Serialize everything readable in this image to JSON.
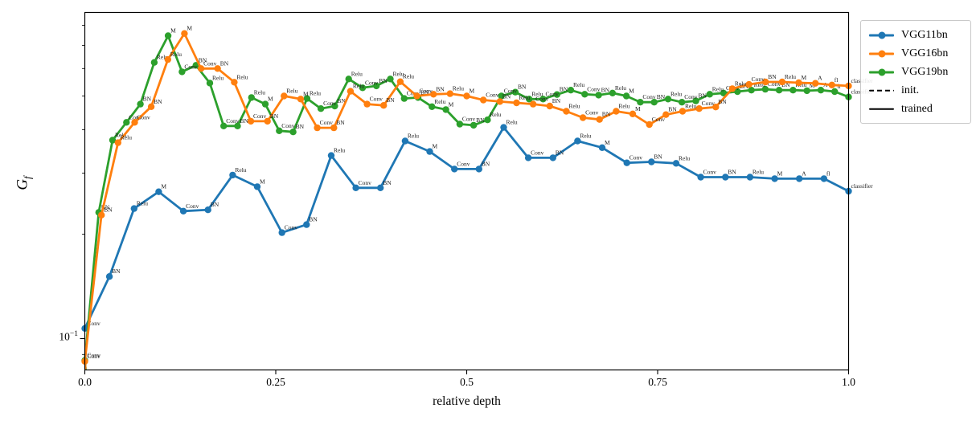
{
  "figure": {
    "background": "#ffffff"
  },
  "axes": {
    "xlabel": "relative depth",
    "ylabel_main": "G",
    "ylabel_sub": "f",
    "x_ticks": [
      {
        "value": 0.0,
        "label": "0.0"
      },
      {
        "value": 0.25,
        "label": "0.25"
      },
      {
        "value": 0.5,
        "label": "0.5"
      },
      {
        "value": 0.75,
        "label": "0.75"
      },
      {
        "value": 1.0,
        "label": "1.0"
      }
    ],
    "y_major_tick": {
      "value": 0.1,
      "base": "10",
      "exp": "−1"
    },
    "y_minor_ticks": [
      0.09,
      0.2,
      0.3,
      0.4,
      0.5,
      0.6,
      0.7,
      0.8
    ],
    "xlim": [
      0,
      1
    ],
    "grid": false
  },
  "legend": {
    "position": "outside-upper-right",
    "entries": [
      {
        "label": "VGG11bn",
        "color": "#1f77b4",
        "style": "solid-marker"
      },
      {
        "label": "VGG16bn",
        "color": "#ff7f0e",
        "style": "solid-marker"
      },
      {
        "label": "VGG19bn",
        "color": "#2ca02c",
        "style": "solid-marker"
      },
      {
        "label": "init.",
        "color": "#000000",
        "style": "dashed"
      },
      {
        "label": "trained",
        "color": "#000000",
        "style": "solid"
      }
    ]
  },
  "chart_data": {
    "type": "line",
    "title": "",
    "xlabel": "relative depth",
    "ylabel": "G_f",
    "y_scale": "log",
    "ylim": [
      0.081,
      0.88
    ],
    "x_rule": "points evenly spaced, x = index/(n-1) over relative depth 0..1",
    "series": [
      {
        "name": "VGG11bn",
        "color": "#1f77b4",
        "condition": "trained",
        "point_labels": [
          "Conv",
          "BN",
          "Relu",
          "M",
          "Conv",
          "BN",
          "Relu",
          "M",
          "Conv",
          "BN",
          "Relu",
          "Conv",
          "BN",
          "Relu",
          "M",
          "Conv",
          "BN",
          "Relu",
          "Conv",
          "BN",
          "Relu",
          "M",
          "Conv",
          "BN",
          "Relu",
          "Conv",
          "BN",
          "Relu",
          "M",
          "A",
          "fl",
          "classifier"
        ],
        "values": [
          0.107,
          0.151,
          0.237,
          0.265,
          0.233,
          0.235,
          0.296,
          0.274,
          0.202,
          0.213,
          0.337,
          0.272,
          0.272,
          0.371,
          0.346,
          0.308,
          0.308,
          0.406,
          0.332,
          0.332,
          0.371,
          0.355,
          0.321,
          0.323,
          0.32,
          0.292,
          0.292,
          0.292,
          0.289,
          0.289,
          0.289,
          0.266
        ]
      },
      {
        "name": "VGG19bn",
        "color": "#2ca02c",
        "condition": "trained",
        "point_labels": [
          "Conv",
          "BN",
          "Relu",
          "Conv",
          "BN",
          "Relu",
          "M",
          "Conv",
          "BN",
          "Relu",
          "Conv",
          "BN",
          "Relu",
          "M",
          "Conv",
          "BN",
          "Relu",
          "Conv",
          "BN",
          "Relu",
          "Conv",
          "BN",
          "Relu",
          "Conv",
          "BN",
          "Relu",
          "M",
          "Conv",
          "BN",
          "Relu",
          "Conv",
          "BN",
          "Relu",
          "Conv",
          "BN",
          "Relu",
          "Conv",
          "BN",
          "Relu",
          "M",
          "Conv",
          "BN",
          "Relu",
          "Conv",
          "BN",
          "Relu",
          "Conv",
          "BN",
          "Relu",
          "Conv",
          "BN",
          "Relu",
          "M",
          "A",
          "fl",
          "classifier"
        ],
        "values": [
          0.0865,
          0.231,
          0.373,
          0.42,
          0.474,
          0.625,
          0.746,
          0.587,
          0.613,
          0.545,
          0.41,
          0.41,
          0.495,
          0.474,
          0.397,
          0.394,
          0.492,
          0.46,
          0.468,
          0.56,
          0.528,
          0.535,
          0.56,
          0.492,
          0.495,
          0.466,
          0.457,
          0.415,
          0.412,
          0.427,
          0.5,
          0.513,
          0.49,
          0.49,
          0.505,
          0.52,
          0.506,
          0.503,
          0.51,
          0.5,
          0.48,
          0.48,
          0.49,
          0.48,
          0.484,
          0.506,
          0.51,
          0.515,
          0.52,
          0.523,
          0.52,
          0.52,
          0.518,
          0.52,
          0.515,
          0.497
        ]
      },
      {
        "name": "VGG16bn",
        "color": "#ff7f0e",
        "condition": "trained",
        "point_labels": [
          "Conv",
          "BN",
          "Relu",
          "Conv",
          "BN",
          "Relu",
          "M",
          "Conv",
          "BN",
          "Relu",
          "Conv",
          "BN",
          "Relu",
          "M",
          "Conv",
          "BN",
          "Relu",
          "Conv",
          "BN",
          "Relu",
          "Conv",
          "BN",
          "Relu",
          "M",
          "Conv",
          "BN",
          "Relu",
          "Conv",
          "BN",
          "Relu",
          "Conv",
          "BN",
          "Relu",
          "M",
          "Conv",
          "BN",
          "Relu",
          "Conv",
          "BN",
          "Relu",
          "Conv",
          "BN",
          "Relu",
          "M",
          "A",
          "fl",
          "classifier"
        ],
        "values": [
          0.086,
          0.227,
          0.367,
          0.42,
          0.466,
          0.637,
          0.757,
          0.6,
          0.6,
          0.548,
          0.423,
          0.423,
          0.5,
          0.49,
          0.405,
          0.405,
          0.516,
          0.474,
          0.47,
          0.55,
          0.5,
          0.506,
          0.508,
          0.5,
          0.487,
          0.482,
          0.478,
          0.474,
          0.468,
          0.452,
          0.433,
          0.428,
          0.452,
          0.444,
          0.414,
          0.442,
          0.452,
          0.46,
          0.465,
          0.525,
          0.54,
          0.549,
          0.549,
          0.546,
          0.544,
          0.538,
          0.535
        ]
      }
    ],
    "init_stubs": [
      {
        "series": "VGG19bn",
        "color": "#2ca02c",
        "x": [
          0,
          0.003
        ],
        "values": [
          0.09,
          0.065
        ]
      },
      {
        "series": "VGG16bn",
        "color": "#ff7f0e",
        "x": [
          0,
          0.003
        ],
        "values": [
          0.088,
          0.062
        ]
      }
    ]
  }
}
